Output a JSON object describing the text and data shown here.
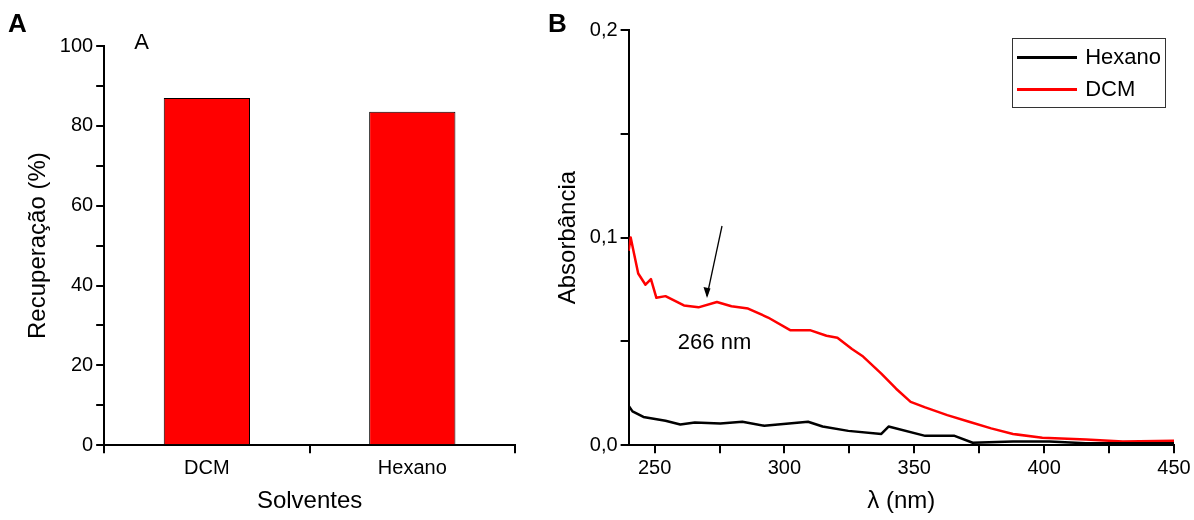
{
  "chart_data": [
    {
      "type": "bar",
      "title": "A",
      "xlabel": "Solventes",
      "ylabel": "Recuperação (%)",
      "categories": [
        "DCM",
        "Hexano"
      ],
      "values": [
        87.0,
        83.5
      ],
      "color": "#ff0000",
      "ylim": [
        0,
        100
      ],
      "yticks": [
        0,
        {
          "value": 10,
          "label": null
        },
        20,
        {
          "value": 30,
          "label": null
        },
        40,
        {
          "value": 50,
          "label": null
        },
        60,
        {
          "value": 70,
          "label": null
        },
        80,
        {
          "value": 90,
          "label": null
        },
        100
      ],
      "annotations": [
        "A"
      ]
    },
    {
      "type": "line",
      "title": "B",
      "xlabel": "λ (nm)",
      "ylabel": "Absorbância",
      "xlim": [
        240,
        450
      ],
      "xticks": [
        250,
        {
          "value": 275,
          "label": null
        },
        300,
        {
          "value": 325,
          "label": null
        },
        350,
        {
          "value": 375,
          "label": null
        },
        400,
        {
          "value": 425,
          "label": null
        },
        450
      ],
      "ylim": [
        0,
        0.2
      ],
      "yticks": [
        {
          "value": 0,
          "label": "0,0"
        },
        {
          "value": 0.05,
          "label": null
        },
        {
          "value": 0.1,
          "label": "0,1"
        },
        {
          "value": 0.15,
          "label": null
        },
        {
          "value": 0.2,
          "label": "0,2"
        }
      ],
      "legend": "top right",
      "marker": "none",
      "annotations": [
        {
          "text": "266 nm",
          "x": 270,
          "y": 0.069
        }
      ],
      "series": [
        {
          "name": "Hexano",
          "color": "#000000",
          "x": [
            240,
            241.5,
            245.7,
            254.2,
            259.9,
            265.5,
            275.3,
            283.8,
            292.2,
            309.1,
            314.7,
            324.6,
            337.3,
            340.1,
            354.2,
            365.5,
            372.5,
            388,
            402,
            416,
            450
          ],
          "values": [
            0.019,
            0.0163,
            0.0136,
            0.0118,
            0.01,
            0.0109,
            0.0105,
            0.0113,
            0.0094,
            0.0113,
            0.009,
            0.0069,
            0.0054,
            0.009,
            0.0045,
            0.0045,
            0.0012,
            0.0018,
            0.0018,
            0.0009,
            0.0009
          ]
        },
        {
          "name": "DCM",
          "color": "#ff0000",
          "x": [
            240,
            240.8,
            243.7,
            246.5,
            248.6,
            250.7,
            254.2,
            261.3,
            266.9,
            274,
            279.6,
            286,
            293.7,
            302.2,
            309.8,
            316.2,
            320.4,
            326,
            330.3,
            337.3,
            343,
            348.6,
            354.2,
            362.7,
            371.1,
            379.6,
            388,
            399.3,
            416.2,
            430.3,
            450
          ],
          "values": [
            0.0936,
            0.1,
            0.0827,
            0.0773,
            0.08,
            0.071,
            0.0718,
            0.0673,
            0.0664,
            0.069,
            0.0669,
            0.0658,
            0.0615,
            0.0554,
            0.0554,
            0.0527,
            0.0518,
            0.0463,
            0.0427,
            0.0345,
            0.0272,
            0.0209,
            0.0182,
            0.0145,
            0.0113,
            0.0081,
            0.0054,
            0.0036,
            0.0027,
            0.0018,
            0.0022
          ]
        }
      ]
    }
  ]
}
